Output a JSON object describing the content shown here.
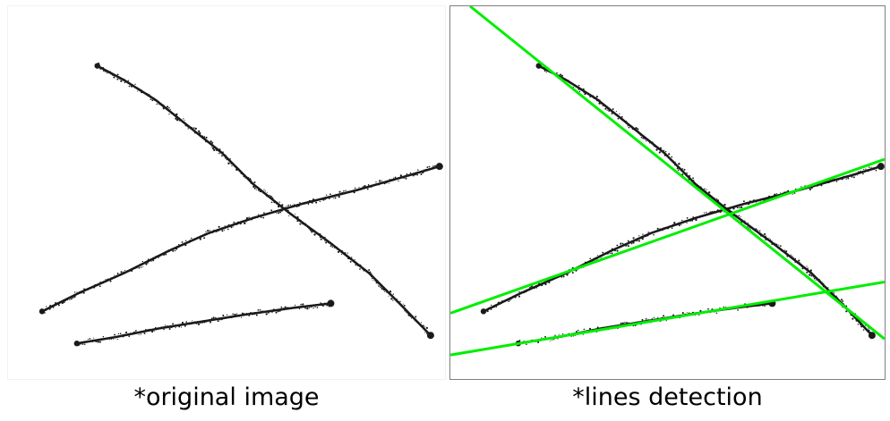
{
  "captions": {
    "original": "*original image",
    "detection": "*lines detection"
  },
  "colors": {
    "stroke": "#1a1a1a",
    "detected_line": "#00ee00",
    "panel_border_original": "#f2f2f2",
    "panel_border_detection": "#7f7f7f"
  },
  "strokes_shown": 3,
  "detected_lines_shown": 3
}
